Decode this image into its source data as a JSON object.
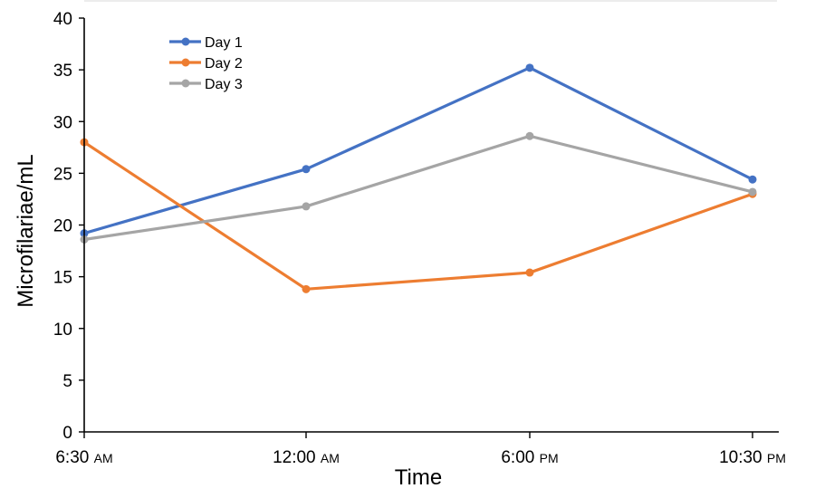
{
  "chart_data": {
    "type": "line",
    "title": "",
    "xlabel": "Time",
    "ylabel": "Microfilariae/mL",
    "categories": [
      {
        "time": "6:30",
        "suffix": "AM"
      },
      {
        "time": "12:00",
        "suffix": "AM"
      },
      {
        "time": "6:00",
        "suffix": "PM"
      },
      {
        "time": "10:30",
        "suffix": "PM"
      }
    ],
    "ylim": [
      0,
      40
    ],
    "yticks": [
      0,
      5,
      10,
      15,
      20,
      25,
      30,
      35,
      40
    ],
    "grid": false,
    "legend": "top-left",
    "series": [
      {
        "name": "Day 1",
        "color": "#4472C4",
        "values": [
          19.2,
          25.4,
          35.2,
          24.4
        ]
      },
      {
        "name": "Day 2",
        "color": "#ED7D31",
        "values": [
          28.0,
          13.8,
          15.4,
          23.0
        ]
      },
      {
        "name": "Day 3",
        "color": "#A5A5A5",
        "values": [
          18.6,
          21.8,
          28.6,
          23.2
        ]
      }
    ]
  }
}
